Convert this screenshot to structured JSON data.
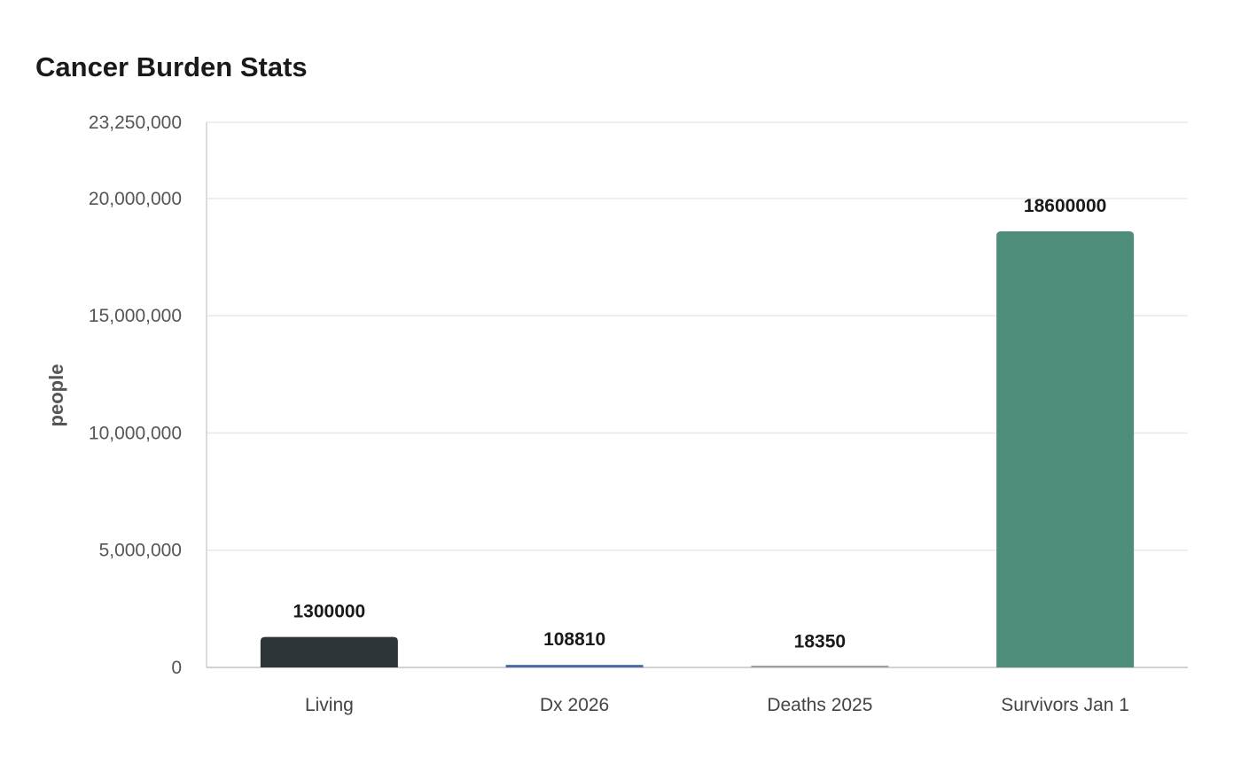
{
  "chart_data": {
    "type": "bar",
    "title": "Cancer Burden Stats",
    "xlabel": "",
    "ylabel": "people",
    "categories": [
      "Living",
      "Dx 2026",
      "Deaths 2025",
      "Survivors Jan 1"
    ],
    "values": [
      1300000,
      108810,
      18350,
      18600000
    ],
    "value_labels": [
      "1300000",
      "108810",
      "18350",
      "18600000"
    ],
    "colors": [
      "#2d3538",
      "#4a69a8",
      "#9aa3a0",
      "#4e8c7b"
    ],
    "ylim": [
      0,
      23250000
    ],
    "yticks": [
      0,
      5000000,
      10000000,
      15000000,
      20000000,
      23250000
    ],
    "ytick_labels": [
      "0",
      "5,000,000",
      "10,000,000",
      "15,000,000",
      "20,000,000",
      "23,250,000"
    ],
    "grid": true,
    "legend": "none"
  }
}
